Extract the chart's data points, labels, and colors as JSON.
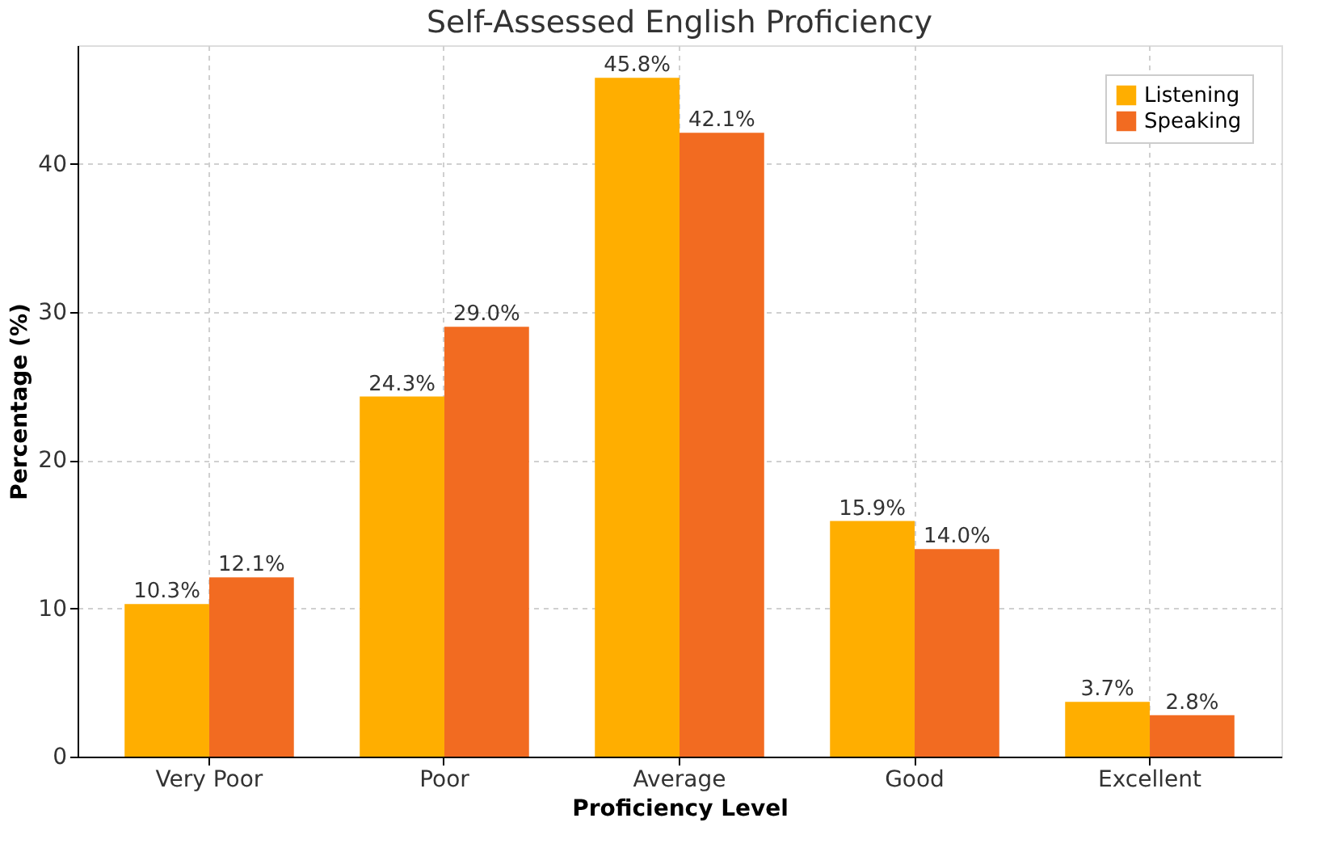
{
  "chart_data": {
    "type": "bar",
    "title": "Self-Assessed English Proficiency",
    "xlabel": "Proficiency Level",
    "ylabel": "Percentage (%)",
    "categories": [
      "Very Poor",
      "Poor",
      "Average",
      "Good",
      "Excellent"
    ],
    "series": [
      {
        "name": "Listening",
        "color": "#ffae00",
        "values": [
          10.3,
          24.3,
          45.8,
          15.9,
          3.7
        ],
        "value_labels": [
          "10.3%",
          "24.3%",
          "45.8%",
          "15.9%",
          "3.7%"
        ]
      },
      {
        "name": "Speaking",
        "color": "#f26b21",
        "values": [
          12.1,
          29.0,
          42.1,
          14.0,
          2.8
        ],
        "value_labels": [
          "12.1%",
          "29.0%",
          "42.1%",
          "14.0%",
          "2.8%"
        ]
      }
    ],
    "ylim": [
      0,
      48
    ],
    "yticks": [
      0,
      10,
      20,
      30,
      40
    ],
    "grid": true,
    "legend": "top right"
  }
}
